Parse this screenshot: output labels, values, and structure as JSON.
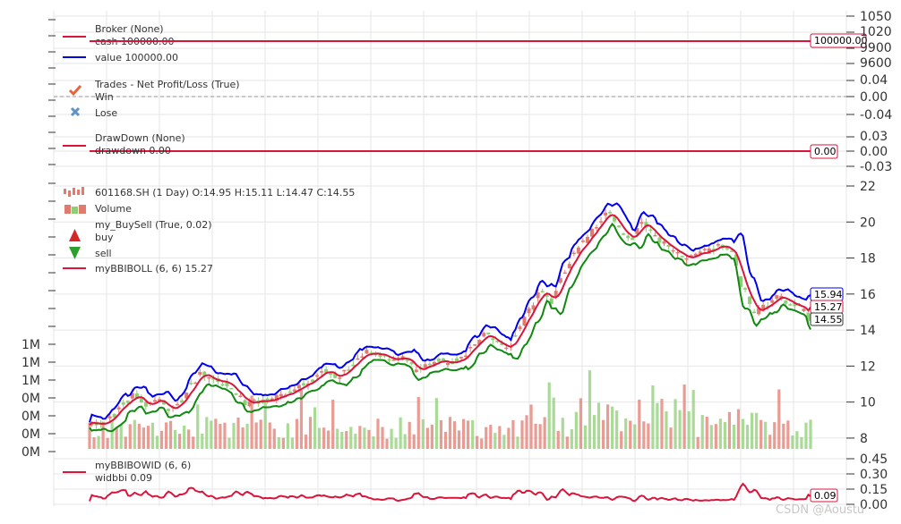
{
  "colors": {
    "cash": "#dc143c",
    "value": "#0000e0",
    "drawdown": "#dc143c",
    "up": "#e07b6f",
    "down": "#8ccf74",
    "upper": "#0000ee",
    "mid": "#dc143c",
    "lower": "#118811",
    "width": "#dc143c",
    "win": "#e8643c",
    "lose": "#5f93c8",
    "buy": "#d62728",
    "sell": "#2ca02c",
    "grid": "#e6e6e6",
    "axis": "#333333"
  },
  "watermark": "CSDN @Aoustu",
  "chart_data": [
    {
      "type": "line",
      "panel": "broker",
      "title": "",
      "legend_title": "Broker (None)",
      "legend_placement": "top-left",
      "series": [
        {
          "name": "cash 100000.00",
          "values": [
            100000,
            100000
          ]
        },
        {
          "name": "value 100000.00",
          "values": [
            100000,
            100000
          ]
        }
      ],
      "last_value_tag": "100000.00",
      "ytick_labels": [
        "1050",
        "1020",
        "9900",
        "9600"
      ],
      "grid": true
    },
    {
      "type": "scatter",
      "panel": "trades",
      "legend_title": "Trades - Net Profit/Loss (True)",
      "legend_placement": "top-left",
      "series": [
        {
          "name": "Win",
          "values": []
        },
        {
          "name": "Lose",
          "values": []
        }
      ],
      "baseline": 0,
      "ytick_labels": [
        "0.04",
        "0.00",
        "-0.04"
      ],
      "grid": true
    },
    {
      "type": "line",
      "panel": "drawdown",
      "legend_title": "DrawDown (None)",
      "legend_placement": "top-left",
      "series": [
        {
          "name": "drawdown 0.00",
          "values": [
            0,
            0
          ]
        }
      ],
      "last_value_tag": "0.00",
      "ytick_labels": [
        "0.03",
        "0.00",
        "-0.03"
      ],
      "grid": true
    },
    {
      "type": "candlestick",
      "panel": "price",
      "legend_placement": "top-left",
      "legend": {
        "ohlc": "601168.SH (1 Day) O:14.95 H:15.11 L:14.47 C:14.55",
        "volume": "Volume",
        "buysell": "my_BuySell (True, 0.02)",
        "buy": "buy",
        "sell": "sell",
        "boll": "myBBIBOLL (6, 6) 15.27"
      },
      "ylim": [
        7.5,
        22
      ],
      "right_ticks": [
        8,
        10,
        12,
        14,
        16,
        18,
        20,
        22
      ],
      "right_tick_labels": [
        "8",
        "10",
        "12",
        "14",
        "16",
        "18",
        "20",
        "22"
      ],
      "volume_tick_labels": [
        "1M",
        "1M",
        "1M",
        "0M",
        "0M",
        "0M",
        "0M"
      ],
      "last_value_tags": {
        "upper": "15.94",
        "mid": "15.27",
        "close": "14.55"
      },
      "close_anchors": [
        [
          0,
          8.9
        ],
        [
          10,
          8.7
        ],
        [
          20,
          9.2
        ],
        [
          30,
          9.9
        ],
        [
          40,
          10.4
        ],
        [
          50,
          9.8
        ],
        [
          60,
          10.2
        ],
        [
          70,
          9.5
        ],
        [
          80,
          10.0
        ],
        [
          90,
          11.0
        ],
        [
          100,
          11.6
        ],
        [
          110,
          11.2
        ],
        [
          120,
          11.1
        ],
        [
          130,
          10.5
        ],
        [
          140,
          9.9
        ],
        [
          150,
          10.0
        ],
        [
          160,
          10.1
        ],
        [
          170,
          10.3
        ],
        [
          180,
          10.6
        ],
        [
          190,
          11.0
        ],
        [
          200,
          11.3
        ],
        [
          210,
          11.8
        ],
        [
          220,
          11.4
        ],
        [
          230,
          11.9
        ],
        [
          240,
          12.6
        ],
        [
          250,
          12.8
        ],
        [
          260,
          12.5
        ],
        [
          270,
          12.3
        ],
        [
          280,
          12.4
        ],
        [
          290,
          11.7
        ],
        [
          300,
          12.0
        ],
        [
          310,
          12.3
        ],
        [
          320,
          12.2
        ],
        [
          330,
          12.4
        ],
        [
          340,
          13.1
        ],
        [
          350,
          13.8
        ],
        [
          360,
          13.3
        ],
        [
          370,
          12.9
        ],
        [
          380,
          13.9
        ],
        [
          390,
          15.2
        ],
        [
          400,
          16.1
        ],
        [
          410,
          15.6
        ],
        [
          420,
          17.2
        ],
        [
          430,
          18.2
        ],
        [
          440,
          19.0
        ],
        [
          450,
          19.8
        ],
        [
          460,
          20.5
        ],
        [
          470,
          19.6
        ],
        [
          480,
          19.0
        ],
        [
          490,
          20.0
        ],
        [
          500,
          19.3
        ],
        [
          510,
          18.8
        ],
        [
          520,
          18.4
        ],
        [
          530,
          18.0
        ],
        [
          540,
          18.2
        ],
        [
          550,
          18.4
        ],
        [
          560,
          18.7
        ],
        [
          570,
          18.3
        ],
        [
          580,
          16.2
        ],
        [
          590,
          15.0
        ],
        [
          600,
          15.4
        ],
        [
          610,
          15.8
        ],
        [
          620,
          15.6
        ],
        [
          630,
          15.3
        ],
        [
          640,
          14.55
        ]
      ]
    },
    {
      "type": "line",
      "panel": "width",
      "legend_title": "myBBIBOWID (6, 6)",
      "legend_placement": "top-left",
      "series": [
        {
          "name": "widbbi 0.09",
          "values": [
            0.09
          ]
        }
      ],
      "last_value_tag": "0.09",
      "ytick_labels": [
        "0.45",
        "0.30",
        "0.15",
        "0.00"
      ],
      "ylim": [
        0,
        0.5
      ],
      "grid": true
    }
  ]
}
